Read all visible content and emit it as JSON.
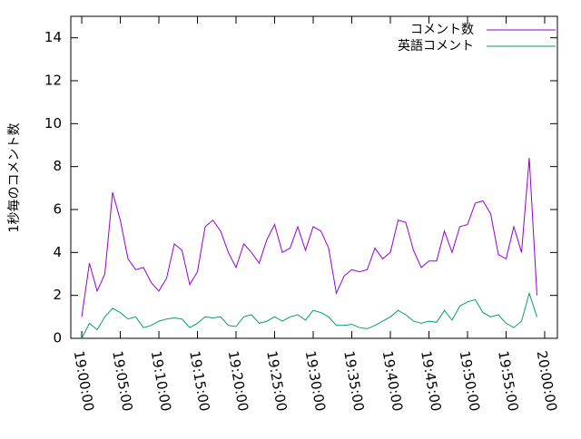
{
  "chart_data": {
    "type": "line",
    "y_label": "1秒毎のコメント数",
    "x": [
      "19:00:00",
      "19:01:00",
      "19:02:00",
      "19:03:00",
      "19:04:00",
      "19:05:00",
      "19:06:00",
      "19:07:00",
      "19:08:00",
      "19:09:00",
      "19:10:00",
      "19:11:00",
      "19:12:00",
      "19:13:00",
      "19:14:00",
      "19:15:00",
      "19:16:00",
      "19:17:00",
      "19:18:00",
      "19:19:00",
      "19:20:00",
      "19:21:00",
      "19:22:00",
      "19:23:00",
      "19:24:00",
      "19:25:00",
      "19:26:00",
      "19:27:00",
      "19:28:00",
      "19:29:00",
      "19:30:00",
      "19:31:00",
      "19:32:00",
      "19:33:00",
      "19:34:00",
      "19:35:00",
      "19:36:00",
      "19:37:00",
      "19:38:00",
      "19:39:00",
      "19:40:00",
      "19:41:00",
      "19:42:00",
      "19:43:00",
      "19:44:00",
      "19:45:00",
      "19:46:00",
      "19:47:00",
      "19:48:00",
      "19:49:00",
      "19:50:00",
      "19:51:00",
      "19:52:00",
      "19:53:00",
      "19:54:00",
      "19:55:00",
      "19:56:00",
      "19:57:00",
      "19:58:00",
      "19:59:00"
    ],
    "series": [
      {
        "name": "コメント数",
        "color": "#9400d3",
        "values": [
          1.0,
          3.5,
          2.2,
          3.0,
          6.8,
          5.5,
          3.7,
          3.2,
          3.3,
          2.6,
          2.2,
          2.8,
          4.4,
          4.1,
          2.5,
          3.1,
          5.2,
          5.5,
          5.0,
          4.0,
          3.3,
          4.4,
          4.0,
          3.5,
          4.6,
          5.3,
          4.0,
          4.2,
          5.2,
          4.1,
          5.2,
          5.0,
          4.2,
          2.1,
          2.9,
          3.2,
          3.1,
          3.2,
          4.2,
          3.7,
          4.0,
          5.5,
          5.4,
          4.1,
          3.3,
          3.6,
          3.6,
          5.0,
          4.0,
          5.2,
          5.3,
          6.3,
          6.4,
          5.8,
          3.9,
          3.7,
          5.2,
          4.0,
          8.4,
          2.0
        ]
      },
      {
        "name": "英語コメント",
        "color": "#009e73",
        "values": [
          0.0,
          0.7,
          0.4,
          1.0,
          1.4,
          1.2,
          0.9,
          1.0,
          0.5,
          0.6,
          0.8,
          0.9,
          0.95,
          0.9,
          0.5,
          0.7,
          1.0,
          0.95,
          1.0,
          0.6,
          0.55,
          1.0,
          1.1,
          0.7,
          0.8,
          1.0,
          0.8,
          1.0,
          1.1,
          0.85,
          1.3,
          1.2,
          1.0,
          0.6,
          0.6,
          0.65,
          0.5,
          0.45,
          0.6,
          0.8,
          1.0,
          1.3,
          1.1,
          0.8,
          0.7,
          0.8,
          0.75,
          1.3,
          0.85,
          1.5,
          1.7,
          1.8,
          1.2,
          1.0,
          1.1,
          0.7,
          0.5,
          0.8,
          2.1,
          1.0
        ]
      }
    ],
    "xlim": [
      "18:58:35",
      "20:01:39"
    ],
    "xticks": [
      "19:00:00",
      "19:05:00",
      "19:10:00",
      "19:15:00",
      "19:20:00",
      "19:25:00",
      "19:30:00",
      "19:35:00",
      "19:40:00",
      "19:45:00",
      "19:50:00",
      "19:55:00",
      "20:00:00"
    ],
    "ylim": [
      0,
      15
    ],
    "yticks": [
      0,
      2,
      4,
      6,
      8,
      10,
      12,
      14
    ],
    "legend": "top-right"
  }
}
